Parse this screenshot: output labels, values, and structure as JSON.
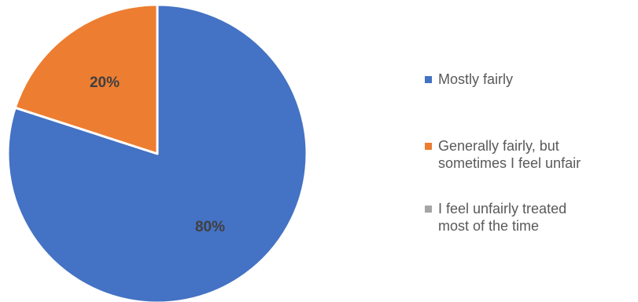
{
  "chart_data": {
    "type": "pie",
    "title": "",
    "categories": [
      "Mostly fairly",
      "Generally fairly, but\nsometimes I feel unfair",
      "I feel unfairly treated\nmost of the time"
    ],
    "values": [
      80,
      20,
      0
    ],
    "data_labels": [
      "80%",
      "20%",
      ""
    ],
    "colors": [
      "#4472C4",
      "#ED7D31",
      "#A5A5A5"
    ],
    "legend_position": "right",
    "start_angle": "top",
    "direction": "clockwise"
  }
}
